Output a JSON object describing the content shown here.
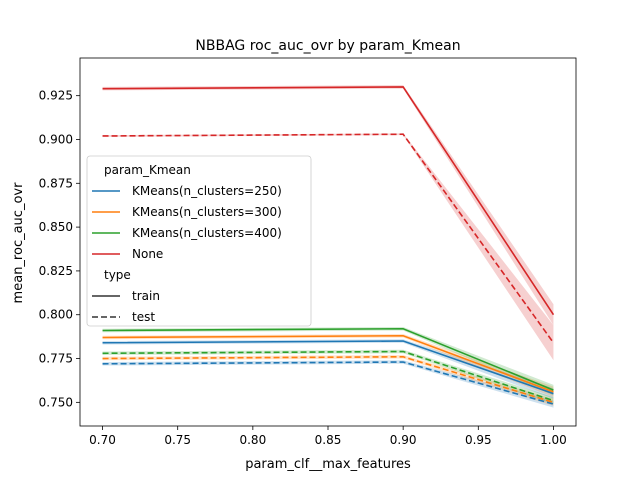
{
  "chart_data": {
    "type": "line",
    "title": "NBBAG roc_auc_ovr by param_Kmean",
    "xlabel": "param_clf__max_features",
    "ylabel": "mean_roc_auc_ovr",
    "xlim": [
      0.685,
      1.015
    ],
    "ylim": [
      0.7365,
      0.9465
    ],
    "x_ticks": [
      0.7,
      0.75,
      0.8,
      0.85,
      0.9,
      0.95,
      1.0
    ],
    "x_tick_labels": [
      "0.70",
      "0.75",
      "0.80",
      "0.85",
      "0.90",
      "0.95",
      "1.00"
    ],
    "y_ticks": [
      0.75,
      0.775,
      0.8,
      0.825,
      0.85,
      0.875,
      0.9,
      0.925
    ],
    "y_tick_labels": [
      "0.750",
      "0.775",
      "0.800",
      "0.825",
      "0.850",
      "0.875",
      "0.900",
      "0.925"
    ],
    "grid": false,
    "x": [
      0.7,
      0.9,
      1.0
    ],
    "legend": {
      "placement": "center-left",
      "hue_title": "param_Kmean",
      "style_title": "type",
      "hue_entries": [
        "KMeans(n_clusters=250)",
        "KMeans(n_clusters=300)",
        "KMeans(n_clusters=400)",
        "None"
      ],
      "style_entries": [
        "train",
        "test"
      ]
    },
    "colors": {
      "KMeans(n_clusters=250)": "#1f77b4",
      "KMeans(n_clusters=300)": "#ff7f0e",
      "KMeans(n_clusters=400)": "#2ca02c",
      "None": "#d62728"
    },
    "series": [
      {
        "name": "KMeans(n_clusters=250)",
        "type": "train",
        "values": [
          0.784,
          0.785,
          0.755
        ],
        "ci": [
          0.001,
          0.001,
          0.003
        ]
      },
      {
        "name": "KMeans(n_clusters=300)",
        "type": "train",
        "values": [
          0.787,
          0.788,
          0.756
        ],
        "ci": [
          0.001,
          0.001,
          0.003
        ]
      },
      {
        "name": "KMeans(n_clusters=400)",
        "type": "train",
        "values": [
          0.791,
          0.792,
          0.757
        ],
        "ci": [
          0.001,
          0.001,
          0.003
        ]
      },
      {
        "name": "None",
        "type": "train",
        "values": [
          0.929,
          0.93,
          0.8
        ],
        "ci": [
          0.001,
          0.001,
          0.006
        ]
      },
      {
        "name": "KMeans(n_clusters=250)",
        "type": "test",
        "values": [
          0.772,
          0.773,
          0.749
        ],
        "ci": [
          0.001,
          0.001,
          0.002
        ]
      },
      {
        "name": "KMeans(n_clusters=300)",
        "type": "test",
        "values": [
          0.775,
          0.776,
          0.75
        ],
        "ci": [
          0.001,
          0.001,
          0.002
        ]
      },
      {
        "name": "KMeans(n_clusters=400)",
        "type": "test",
        "values": [
          0.778,
          0.779,
          0.751
        ],
        "ci": [
          0.001,
          0.001,
          0.002
        ]
      },
      {
        "name": "None",
        "type": "test",
        "values": [
          0.902,
          0.903,
          0.784
        ],
        "ci": [
          0.0005,
          0.0005,
          0.01
        ]
      }
    ]
  }
}
